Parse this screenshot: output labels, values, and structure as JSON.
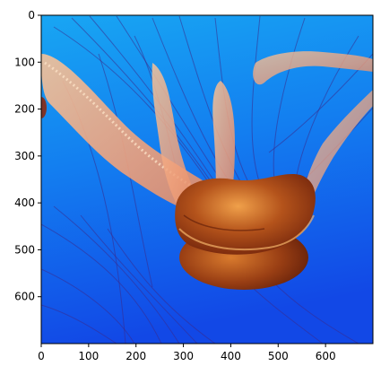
{
  "figure": {
    "image_description_name": "jellyfish-photo",
    "colors": {
      "water_top": "#18a6f3",
      "water_mid": "#137ff0",
      "water_bottom": "#1248e6",
      "bell_dark": "#6b1f0a",
      "bell_mid": "#b4531b",
      "bell_light": "#f0a04a",
      "arm_light": "#f6c39a",
      "arm_mid": "#f0a07a",
      "tentacle": "#3b2a8c"
    }
  },
  "axes": {
    "x_ticks": [
      {
        "value": 0,
        "label": "0"
      },
      {
        "value": 100,
        "label": "100"
      },
      {
        "value": 200,
        "label": "200"
      },
      {
        "value": 300,
        "label": "300"
      },
      {
        "value": 400,
        "label": "400"
      },
      {
        "value": 500,
        "label": "500"
      },
      {
        "value": 600,
        "label": "600"
      }
    ],
    "y_ticks": [
      {
        "value": 0,
        "label": "0"
      },
      {
        "value": 100,
        "label": "100"
      },
      {
        "value": 200,
        "label": "200"
      },
      {
        "value": 300,
        "label": "300"
      },
      {
        "value": 400,
        "label": "400"
      },
      {
        "value": 500,
        "label": "500"
      },
      {
        "value": 600,
        "label": "600"
      }
    ],
    "x_range": [
      0,
      700
    ],
    "y_range": [
      700,
      0
    ]
  }
}
